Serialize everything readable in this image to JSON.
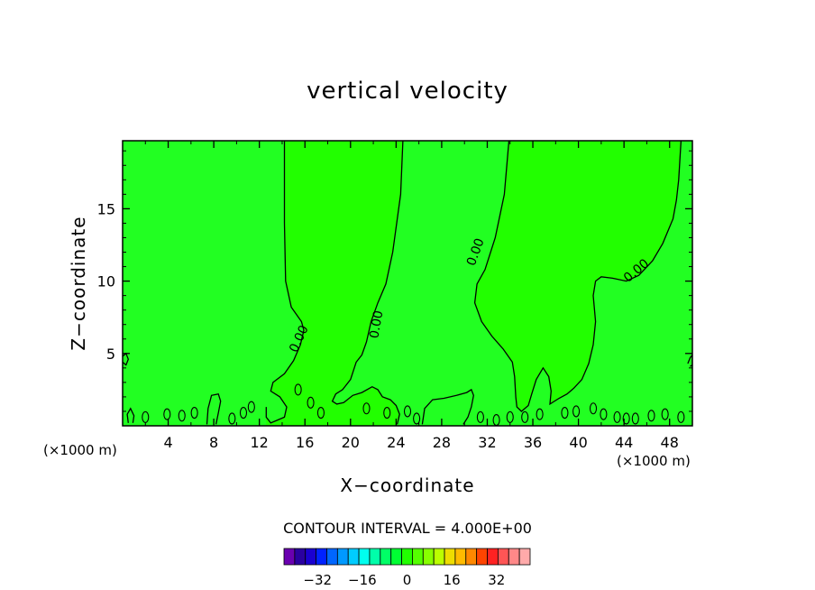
{
  "chart_data": {
    "type": "contour",
    "title": "vertical velocity",
    "xlabel": "X−coordinate",
    "ylabel": "Z−coordinate",
    "x_unit_label": "(×1000 m)",
    "xlim": [
      0,
      50
    ],
    "ylim": [
      0,
      19.7
    ],
    "x_ticks": [
      4,
      8,
      12,
      16,
      20,
      24,
      28,
      32,
      36,
      40,
      44,
      48
    ],
    "y_ticks": [
      5,
      10,
      15
    ],
    "contour_interval_text": "CONTOUR INTERVAL = 4.000E+00",
    "background_color": "#22ff22",
    "positive_region_color": "#22ff00",
    "negative_region_color": "#00ff44",
    "contour_labels": [
      {
        "text": "0.00",
        "x": 15.5,
        "z": 6.0,
        "angle": -65
      },
      {
        "text": "0.00",
        "x": 22.3,
        "z": 7.0,
        "angle": -80
      },
      {
        "text": "0.00",
        "x": 31.0,
        "z": 12.0,
        "angle": -70
      },
      {
        "text": "0.00",
        "x": 45.1,
        "z": 10.7,
        "angle": -40
      }
    ],
    "zero_contours": [
      {
        "points": [
          [
            14.2,
            19.7
          ],
          [
            14.2,
            14
          ],
          [
            14.3,
            10
          ],
          [
            14.8,
            8.2
          ],
          [
            15.7,
            7.2
          ],
          [
            15.9,
            6.6
          ],
          [
            15.6,
            5.6
          ],
          [
            15.0,
            4.5
          ],
          [
            14.2,
            3.6
          ],
          [
            13.2,
            3.0
          ],
          [
            13.0,
            2.4
          ],
          [
            13.8,
            2.0
          ],
          [
            14.4,
            1.3
          ],
          [
            14.2,
            0.6
          ],
          [
            13.0,
            0.2
          ],
          [
            12.6,
            0.6
          ],
          [
            12.6,
            1.3
          ]
        ]
      },
      {
        "points": [
          [
            24.6,
            19.7
          ],
          [
            24.4,
            16
          ],
          [
            23.7,
            12
          ],
          [
            23.1,
            9.8
          ],
          [
            22.4,
            8.5
          ],
          [
            21.8,
            7.2
          ],
          [
            21.4,
            5.8
          ],
          [
            21.0,
            4.9
          ],
          [
            20.5,
            4.4
          ],
          [
            20.0,
            3.2
          ],
          [
            19.3,
            2.5
          ],
          [
            18.7,
            2.2
          ],
          [
            18.4,
            1.7
          ],
          [
            18.8,
            1.5
          ],
          [
            19.4,
            1.6
          ],
          [
            20.2,
            2.1
          ],
          [
            21.0,
            2.3
          ],
          [
            21.9,
            2.7
          ],
          [
            22.4,
            2.5
          ],
          [
            22.8,
            2.0
          ],
          [
            23.5,
            1.8
          ],
          [
            24.0,
            1.4
          ],
          [
            24.3,
            0.8
          ],
          [
            24.1,
            0.1
          ]
        ]
      },
      {
        "points": [
          [
            33.9,
            19.7
          ],
          [
            33.5,
            16
          ],
          [
            32.7,
            13
          ],
          [
            31.8,
            10.8
          ],
          [
            31.1,
            9.8
          ],
          [
            30.9,
            8.5
          ],
          [
            31.5,
            7.2
          ],
          [
            32.4,
            6.2
          ],
          [
            33.4,
            5.3
          ],
          [
            34.2,
            4.4
          ],
          [
            34.4,
            3.4
          ],
          [
            34.5,
            2.0
          ],
          [
            34.6,
            1.3
          ],
          [
            35.0,
            1.0
          ],
          [
            35.6,
            1.4
          ],
          [
            35.9,
            2.2
          ],
          [
            36.3,
            3.2
          ],
          [
            36.9,
            4.0
          ],
          [
            37.4,
            3.4
          ],
          [
            37.6,
            2.4
          ],
          [
            37.5,
            1.5
          ],
          [
            38.3,
            1.9
          ],
          [
            39.0,
            2.2
          ],
          [
            39.6,
            2.6
          ],
          [
            40.3,
            3.2
          ],
          [
            40.9,
            4.3
          ],
          [
            41.3,
            5.6
          ],
          [
            41.5,
            7.2
          ],
          [
            41.3,
            9.0
          ],
          [
            41.5,
            10.0
          ],
          [
            42.0,
            10.3
          ],
          [
            43.0,
            10.2
          ],
          [
            44.2,
            10.0
          ],
          [
            45.3,
            10.4
          ],
          [
            46.5,
            11.4
          ],
          [
            47.4,
            12.6
          ],
          [
            48.3,
            14.3
          ],
          [
            48.6,
            15.6
          ],
          [
            48.8,
            17
          ],
          [
            49.0,
            19.7
          ]
        ]
      },
      {
        "points": [
          [
            0.5,
            0.2
          ],
          [
            0.4,
            0.8
          ],
          [
            0.7,
            1.2
          ],
          [
            1.0,
            0.7
          ],
          [
            0.9,
            0.2
          ]
        ]
      },
      {
        "points": [
          [
            7.4,
            0.1
          ],
          [
            7.5,
            1.2
          ],
          [
            7.8,
            2.1
          ],
          [
            8.4,
            2.2
          ],
          [
            8.6,
            1.7
          ],
          [
            8.4,
            0.9
          ],
          [
            8.2,
            0.1
          ]
        ]
      },
      {
        "points": [
          [
            26.3,
            0.1
          ],
          [
            26.5,
            1.2
          ],
          [
            27.2,
            1.8
          ],
          [
            28.2,
            1.9
          ],
          [
            29.3,
            2.1
          ],
          [
            30.2,
            2.3
          ],
          [
            30.6,
            2.5
          ],
          [
            30.8,
            2.1
          ],
          [
            30.6,
            1.3
          ],
          [
            30.3,
            0.6
          ],
          [
            29.9,
            0.1
          ]
        ]
      },
      {
        "points": [
          [
            0,
            4.4
          ],
          [
            0.3,
            4.2
          ],
          [
            0.5,
            4.6
          ],
          [
            0.3,
            5.0
          ],
          [
            0,
            4.8
          ]
        ]
      },
      {
        "points": [
          [
            49.6,
            4.3
          ],
          [
            49.8,
            4.7
          ],
          [
            50,
            4.9
          ],
          [
            50,
            4.2
          ],
          [
            49.8,
            4.1
          ]
        ]
      }
    ],
    "colorbar": {
      "colors": [
        "#6a00b0",
        "#2a00a0",
        "#1a00d0",
        "#0022ff",
        "#0066ff",
        "#0099ff",
        "#00ccff",
        "#00ffee",
        "#00ffaa",
        "#00ff66",
        "#00ff33",
        "#22ff00",
        "#55ff00",
        "#88ff00",
        "#bbff00",
        "#eedd00",
        "#ffbb00",
        "#ff8800",
        "#ff4400",
        "#ff2222",
        "#ff5555",
        "#ff8888",
        "#ffaaaa"
      ],
      "tick_labels": [
        "−32",
        "−16",
        "0",
        "16",
        "32"
      ],
      "tick_values": [
        -32,
        -16,
        0,
        16,
        32
      ]
    }
  }
}
